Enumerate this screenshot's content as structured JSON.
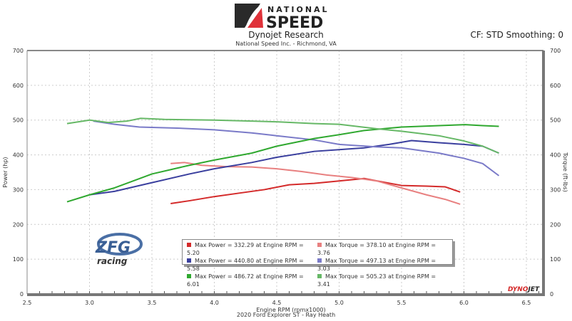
{
  "header": {
    "logo_text": "NATIONAL SPEED",
    "title": "Dynojet Research",
    "subtitle": "National Speed Inc. - Richmond, VA",
    "cf": "CF: STD Smoothing: 0"
  },
  "watermarks": {
    "left_logo": "ZFG racing",
    "dyno_logo": "DYNOJET"
  },
  "vehicle": "2020 Ford Explorer ST - Ray Heath",
  "chart_data": {
    "type": "line",
    "xlabel": "Engine RPM (rpmx1000)",
    "ylabel": "Power (hp)",
    "ylabel_right": "Torque (ft-lbs)",
    "xlim": [
      2.5,
      6.5
    ],
    "ylim": [
      0,
      700
    ],
    "xticks": [
      "2.5",
      "3.0",
      "3.5",
      "4.0",
      "4.5",
      "5.0",
      "5.5",
      "6.0",
      "6.5"
    ],
    "yticks": [
      "0",
      "100",
      "200",
      "300",
      "400",
      "500",
      "600",
      "700"
    ],
    "grid": true,
    "legend_position": "bottom-center",
    "legend": [
      "Max Power = 332.29 at Engine RPM = 5.20",
      "Max Torque = 378.10 at Engine RPM = 3.76",
      "Max Power = 440.80 at Engine RPM = 5.58",
      "Max Torque = 497.13 at Engine RPM = 3.03",
      "Max Power = 486.72 at Engine RPM = 6.01",
      "Max Torque = 505.23 at Engine RPM = 3.41"
    ],
    "series": [
      {
        "kind": "power",
        "color": "#d42a2a",
        "points": [
          [
            3.65,
            260
          ],
          [
            3.8,
            268
          ],
          [
            4.0,
            280
          ],
          [
            4.2,
            290
          ],
          [
            4.4,
            300
          ],
          [
            4.6,
            314
          ],
          [
            4.8,
            318
          ],
          [
            5.0,
            325
          ],
          [
            5.2,
            332
          ],
          [
            5.35,
            322
          ],
          [
            5.5,
            312
          ],
          [
            5.7,
            310
          ],
          [
            5.85,
            308
          ],
          [
            5.97,
            293
          ]
        ]
      },
      {
        "kind": "torque",
        "color": "#e88080",
        "points": [
          [
            3.65,
            375
          ],
          [
            3.76,
            378
          ],
          [
            3.9,
            370
          ],
          [
            4.1,
            366
          ],
          [
            4.3,
            365
          ],
          [
            4.5,
            360
          ],
          [
            4.7,
            352
          ],
          [
            4.9,
            342
          ],
          [
            5.1,
            335
          ],
          [
            5.3,
            325
          ],
          [
            5.5,
            305
          ],
          [
            5.7,
            285
          ],
          [
            5.85,
            272
          ],
          [
            5.97,
            258
          ]
        ]
      },
      {
        "kind": "power",
        "color": "#3a3f9e",
        "points": [
          [
            3.0,
            285
          ],
          [
            3.2,
            295
          ],
          [
            3.5,
            320
          ],
          [
            3.8,
            345
          ],
          [
            4.0,
            360
          ],
          [
            4.3,
            378
          ],
          [
            4.5,
            393
          ],
          [
            4.8,
            410
          ],
          [
            5.0,
            415
          ],
          [
            5.2,
            420
          ],
          [
            5.4,
            430
          ],
          [
            5.58,
            441
          ],
          [
            5.8,
            435
          ],
          [
            6.0,
            430
          ],
          [
            6.15,
            425
          ],
          [
            6.28,
            405
          ]
        ]
      },
      {
        "kind": "torque",
        "color": "#7a7ac8",
        "points": [
          [
            3.03,
            497
          ],
          [
            3.2,
            488
          ],
          [
            3.4,
            480
          ],
          [
            3.7,
            477
          ],
          [
            4.0,
            472
          ],
          [
            4.3,
            463
          ],
          [
            4.5,
            455
          ],
          [
            4.8,
            443
          ],
          [
            5.0,
            430
          ],
          [
            5.3,
            423
          ],
          [
            5.5,
            420
          ],
          [
            5.8,
            405
          ],
          [
            6.0,
            390
          ],
          [
            6.15,
            375
          ],
          [
            6.28,
            340
          ]
        ]
      },
      {
        "kind": "power",
        "color": "#2fa82f",
        "points": [
          [
            2.82,
            265
          ],
          [
            3.0,
            285
          ],
          [
            3.2,
            305
          ],
          [
            3.5,
            345
          ],
          [
            3.8,
            370
          ],
          [
            4.0,
            385
          ],
          [
            4.3,
            405
          ],
          [
            4.5,
            425
          ],
          [
            4.8,
            447
          ],
          [
            5.0,
            458
          ],
          [
            5.2,
            470
          ],
          [
            5.5,
            480
          ],
          [
            5.8,
            484
          ],
          [
            6.01,
            487
          ],
          [
            6.15,
            484
          ],
          [
            6.28,
            482
          ]
        ]
      },
      {
        "kind": "torque",
        "color": "#66b866",
        "points": [
          [
            2.82,
            490
          ],
          [
            3.0,
            500
          ],
          [
            3.15,
            493
          ],
          [
            3.3,
            497
          ],
          [
            3.41,
            505
          ],
          [
            3.6,
            502
          ],
          [
            4.0,
            500
          ],
          [
            4.3,
            497
          ],
          [
            4.5,
            495
          ],
          [
            4.8,
            490
          ],
          [
            5.0,
            488
          ],
          [
            5.3,
            475
          ],
          [
            5.5,
            468
          ],
          [
            5.8,
            455
          ],
          [
            6.0,
            440
          ],
          [
            6.15,
            425
          ],
          [
            6.28,
            405
          ]
        ]
      }
    ]
  }
}
